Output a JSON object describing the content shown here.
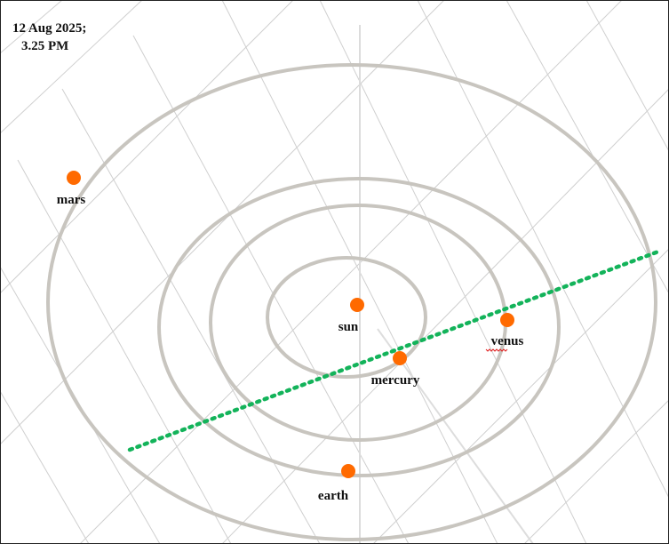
{
  "timestamp": {
    "date": "12  Aug 2025;",
    "time": "3.25 PM"
  },
  "bodies": [
    {
      "id": "sun",
      "label": "sun"
    },
    {
      "id": "mercury",
      "label": "mercury"
    },
    {
      "id": "venus",
      "label": "venus"
    },
    {
      "id": "earth",
      "label": "earth"
    },
    {
      "id": "mars",
      "label": "mars"
    }
  ],
  "colors": {
    "planet": "#ff6a00",
    "orbit": "#c8c5bf",
    "grid": "#cfcfcf",
    "alignment_line": "#13b35a",
    "label": "#111111",
    "spellcheck_underline": "#e02020"
  }
}
